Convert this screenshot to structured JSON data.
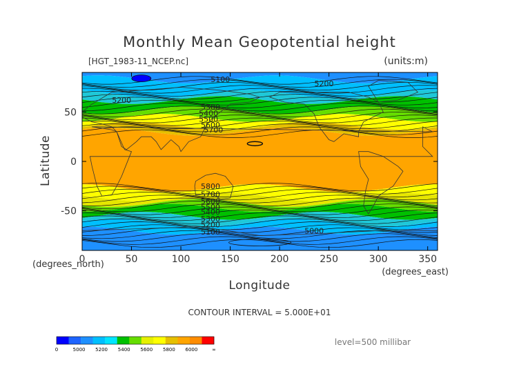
{
  "chart_data": {
    "type": "heatmap",
    "title": "Monthly Mean Geopotential height",
    "file_label": "[HGT_1983-11_NCEP.nc]",
    "units_label": "(units:m)",
    "xlabel": "Longitude",
    "ylabel": "Latitude",
    "x_unit": "(degrees_east)",
    "y_unit": "(degrees_north)",
    "xlim": [
      0,
      360
    ],
    "ylim": [
      -90,
      90
    ],
    "x_ticks": [
      "0",
      "50",
      "100",
      "150",
      "200",
      "250",
      "300",
      "350"
    ],
    "x_tick_values": [
      0,
      50,
      100,
      150,
      200,
      250,
      300,
      350
    ],
    "y_ticks": [
      "50",
      "0",
      "-50"
    ],
    "y_tick_values": [
      50,
      0,
      -50
    ],
    "contour_interval_text": "CONTOUR INTERVAL = 5.000E+01",
    "level_text": "level=500 millibar",
    "bands": [
      {
        "from": 90,
        "to": 83,
        "color": "#1e90ff"
      },
      {
        "from": 83,
        "to": 68,
        "color": "#00bfff"
      },
      {
        "from": 68,
        "to": 62,
        "color": "#1fc8d8"
      },
      {
        "from": 62,
        "to": 52,
        "color": "#00c000"
      },
      {
        "from": 52,
        "to": 44,
        "color": "#66dd00"
      },
      {
        "from": 44,
        "to": 36,
        "color": "#ffff00"
      },
      {
        "from": 36,
        "to": 30,
        "color": "#e6c000"
      },
      {
        "from": 30,
        "to": -27,
        "color": "#ffa500"
      },
      {
        "from": -27,
        "to": -36,
        "color": "#ffff00"
      },
      {
        "from": -36,
        "to": -42,
        "color": "#e6e600"
      },
      {
        "from": -42,
        "to": -47,
        "color": "#66dd00"
      },
      {
        "from": -47,
        "to": -55,
        "color": "#00c000"
      },
      {
        "from": -55,
        "to": -62,
        "color": "#1fc8d8"
      },
      {
        "from": -62,
        "to": -70,
        "color": "#00bfff"
      },
      {
        "from": -70,
        "to": -90,
        "color": "#1e90ff"
      }
    ],
    "contour_labels": [
      {
        "text": "5100",
        "lon": 140,
        "lat": 83
      },
      {
        "text": "5200",
        "lon": 40,
        "lat": 62
      },
      {
        "text": "5200",
        "lon": 245,
        "lat": 79
      },
      {
        "text": "5300",
        "lon": 130,
        "lat": 55
      },
      {
        "text": "5400",
        "lon": 128,
        "lat": 49
      },
      {
        "text": "5500",
        "lon": 128,
        "lat": 43
      },
      {
        "text": "5600",
        "lon": 130,
        "lat": 37
      },
      {
        "text": "5700",
        "lon": 133,
        "lat": 32
      },
      {
        "text": "5800",
        "lon": 130,
        "lat": -25
      },
      {
        "text": "5700",
        "lon": 130,
        "lat": -33
      },
      {
        "text": "5600",
        "lon": 130,
        "lat": -40
      },
      {
        "text": "5500",
        "lon": 130,
        "lat": -46
      },
      {
        "text": "5400",
        "lon": 130,
        "lat": -51
      },
      {
        "text": "5300",
        "lon": 130,
        "lat": -58
      },
      {
        "text": "5200",
        "lon": 130,
        "lat": -64
      },
      {
        "text": "5100",
        "lon": 130,
        "lat": -71
      },
      {
        "text": "5000",
        "lon": 235,
        "lat": -70
      }
    ],
    "colorbar": {
      "colors": [
        "#0000ff",
        "#1e64ff",
        "#1e90ff",
        "#00bfff",
        "#00e5ff",
        "#00c000",
        "#66dd00",
        "#e6f000",
        "#ffff00",
        "#e6c000",
        "#ffa500",
        "#ff8c00",
        "#ff0000"
      ],
      "tick_labels": [
        "0",
        "5000",
        "5200",
        "5400",
        "5600",
        "5800",
        "6000",
        "∞"
      ]
    }
  }
}
